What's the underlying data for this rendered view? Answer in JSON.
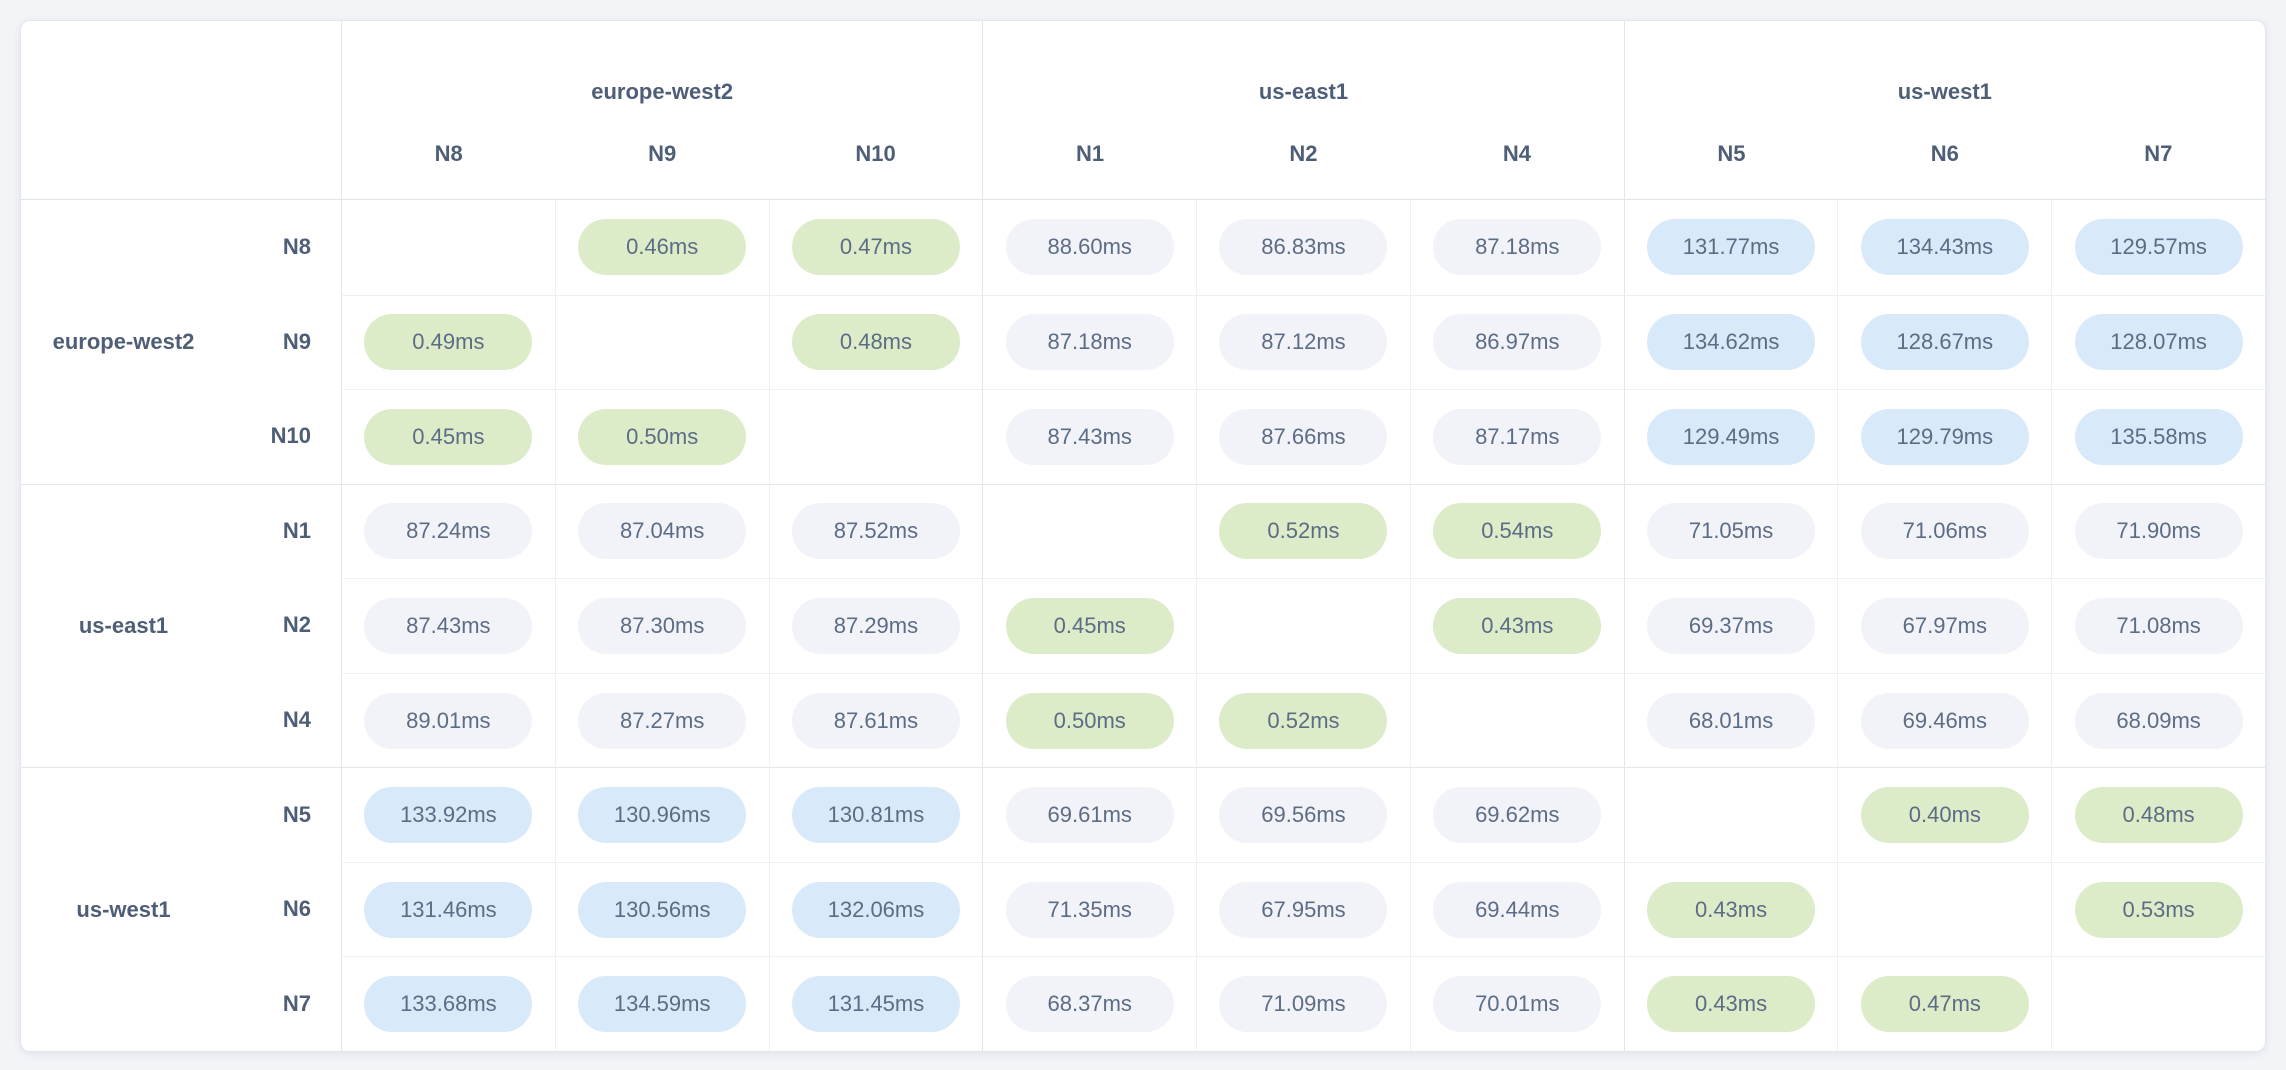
{
  "page": {
    "background_color": "#f2f4f8",
    "card_background_color": "#ffffff"
  },
  "palette": {
    "label_text": "#4e5e77",
    "value_text": "#5d6c85",
    "grid_line_light": "#eef0f4",
    "grid_line_group": "#e3e6ec",
    "pill_low_green": "#dcecc9",
    "pill_mid_gray": "#f1f3f8",
    "pill_high_blue": "#d8e9fa"
  },
  "chart_data": {
    "type": "heatmap",
    "unit": "ms",
    "grid": true,
    "legend_position": "none",
    "column_groups": [
      {
        "region": "europe-west2",
        "nodes": [
          "N8",
          "N9",
          "N10"
        ]
      },
      {
        "region": "us-east1",
        "nodes": [
          "N1",
          "N2",
          "N4"
        ]
      },
      {
        "region": "us-west1",
        "nodes": [
          "N5",
          "N6",
          "N7"
        ]
      }
    ],
    "row_groups": [
      {
        "region": "europe-west2",
        "nodes": [
          "N8",
          "N9",
          "N10"
        ]
      },
      {
        "region": "us-east1",
        "nodes": [
          "N1",
          "N2",
          "N4"
        ]
      },
      {
        "region": "us-west1",
        "nodes": [
          "N5",
          "N6",
          "N7"
        ]
      }
    ],
    "columns": [
      "N8",
      "N9",
      "N10",
      "N1",
      "N2",
      "N4",
      "N5",
      "N6",
      "N7"
    ],
    "rows": [
      {
        "node": "N8",
        "values": [
          null,
          0.46,
          0.47,
          88.6,
          86.83,
          87.18,
          131.77,
          134.43,
          129.57
        ]
      },
      {
        "node": "N9",
        "values": [
          0.49,
          null,
          0.48,
          87.18,
          87.12,
          86.97,
          134.62,
          128.67,
          128.07
        ]
      },
      {
        "node": "N10",
        "values": [
          0.45,
          0.5,
          null,
          87.43,
          87.66,
          87.17,
          129.49,
          129.79,
          135.58
        ]
      },
      {
        "node": "N1",
        "values": [
          87.24,
          87.04,
          87.52,
          null,
          0.52,
          0.54,
          71.05,
          71.06,
          71.9
        ]
      },
      {
        "node": "N2",
        "values": [
          87.43,
          87.3,
          87.29,
          0.45,
          null,
          0.43,
          69.37,
          67.97,
          71.08
        ]
      },
      {
        "node": "N4",
        "values": [
          89.01,
          87.27,
          87.61,
          0.5,
          0.52,
          null,
          68.01,
          69.46,
          68.09
        ]
      },
      {
        "node": "N5",
        "values": [
          133.92,
          130.96,
          130.81,
          69.61,
          69.56,
          69.62,
          null,
          0.4,
          0.48
        ]
      },
      {
        "node": "N6",
        "values": [
          131.46,
          130.56,
          132.06,
          71.35,
          67.95,
          69.44,
          0.43,
          null,
          0.53
        ]
      },
      {
        "node": "N7",
        "values": [
          133.68,
          134.59,
          131.45,
          68.37,
          71.09,
          70.01,
          0.43,
          0.47,
          null
        ]
      }
    ],
    "color_coding": {
      "low_latency": {
        "max_ms": 1,
        "color": "#dcecc9"
      },
      "medium_latency": {
        "color": "#f1f3f8"
      },
      "high_latency": {
        "min_ms": 100,
        "color": "#d8e9fa"
      }
    }
  }
}
